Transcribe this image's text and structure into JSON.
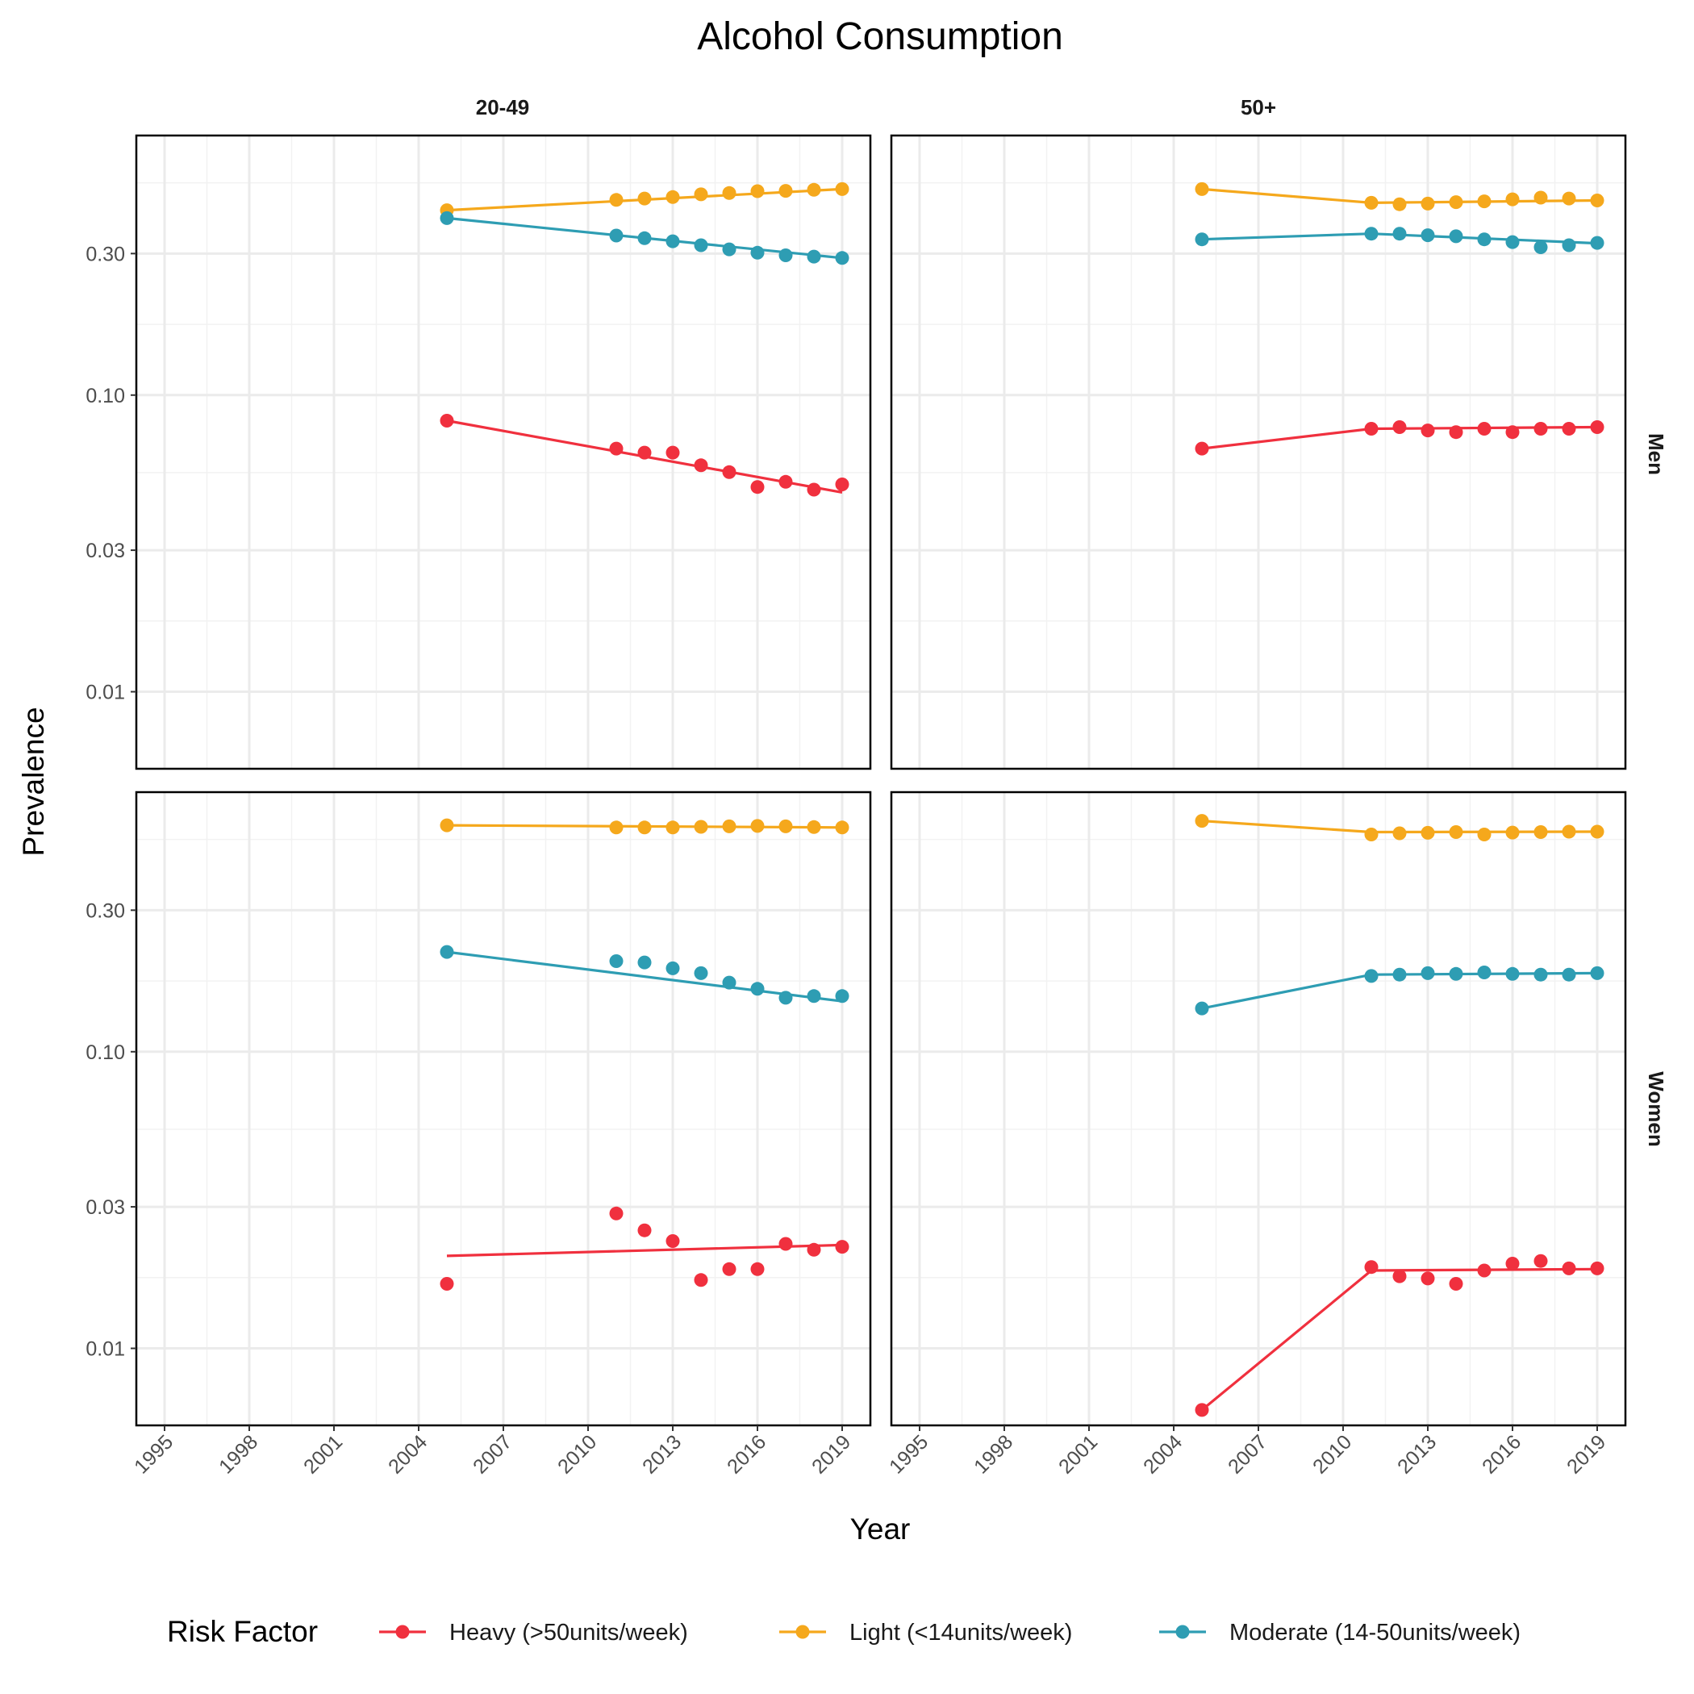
{
  "chart_data": {
    "type": "line",
    "title": "Alcohol Consumption",
    "xlabel": "Year",
    "ylabel": "Prevalence",
    "xlim": [
      1994,
      2020
    ],
    "ylim": [
      0.0055,
      0.75
    ],
    "y_scale": "log",
    "x_ticks": [
      "1995",
      "1998",
      "2001",
      "2004",
      "2007",
      "2010",
      "2013",
      "2016",
      "2019"
    ],
    "y_ticks": [
      "0.01",
      "0.03",
      "0.10",
      "0.30"
    ],
    "y_tick_values": [
      0.01,
      0.03,
      0.1,
      0.3
    ],
    "grid": true,
    "facet_columns": [
      "20-49",
      "50+"
    ],
    "facet_rows": [
      "Men",
      "Women"
    ],
    "legend": {
      "title": "Risk Factor",
      "position": "bottom",
      "entries": [
        "Heavy (>50units/week)",
        "Light (<14units/week)",
        "Moderate (14-50units/week)"
      ]
    },
    "series_colors": {
      "Heavy (>50units/week)": "#f0303e",
      "Light (<14units/week)": "#f5a81c",
      "Moderate (14-50units/week)": "#2e9db3"
    },
    "x": [
      2005,
      2011,
      2012,
      2013,
      2014,
      2015,
      2016,
      2017,
      2018,
      2019
    ],
    "panels": [
      {
        "column": "20-49",
        "row": "Men",
        "series": [
          {
            "name": "Light (<14units/week)",
            "points": [
              0.42,
              0.455,
              0.46,
              0.465,
              0.475,
              0.48,
              0.487,
              0.488,
              0.492,
              0.495
            ],
            "line": [
              0.42,
              0.495
            ]
          },
          {
            "name": "Moderate (14-50units/week)",
            "points": [
              0.395,
              0.345,
              0.338,
              0.33,
              0.32,
              0.31,
              0.302,
              0.296,
              0.293,
              0.29
            ],
            "line": [
              0.395,
              0.29
            ]
          },
          {
            "name": "Heavy (>50units/week)",
            "points": [
              0.082,
              0.066,
              0.064,
              0.064,
              0.058,
              0.055,
              0.049,
              0.051,
              0.048,
              0.05
            ],
            "line": [
              0.082,
              0.047
            ]
          }
        ]
      },
      {
        "column": "50+",
        "row": "Men",
        "series": [
          {
            "name": "Light (<14units/week)",
            "points": [
              0.495,
              0.445,
              0.44,
              0.442,
              0.447,
              0.45,
              0.457,
              0.463,
              0.46,
              0.453
            ],
            "line": [
              0.495,
              0.445,
              0.453
            ]
          },
          {
            "name": "Moderate (14-50units/week)",
            "points": [
              0.335,
              0.35,
              0.35,
              0.346,
              0.343,
              0.335,
              0.328,
              0.315,
              0.32,
              0.326
            ],
            "line": [
              0.335,
              0.35,
              0.325
            ]
          },
          {
            "name": "Heavy (>50units/week)",
            "points": [
              0.066,
              0.077,
              0.078,
              0.076,
              0.075,
              0.077,
              0.075,
              0.077,
              0.077,
              0.078
            ],
            "line": [
              0.066,
              0.077,
              0.078
            ]
          }
        ]
      },
      {
        "column": "20-49",
        "row": "Women",
        "series": [
          {
            "name": "Light (<14units/week)",
            "points": [
              0.58,
              0.57,
              0.57,
              0.57,
              0.573,
              0.575,
              0.577,
              0.575,
              0.572,
              0.57
            ],
            "line": [
              0.58,
              0.57
            ]
          },
          {
            "name": "Moderate (14-50units/week)",
            "points": [
              0.217,
              0.202,
              0.2,
              0.191,
              0.184,
              0.171,
              0.163,
              0.152,
              0.154,
              0.154
            ],
            "line": [
              0.217,
              0.148
            ]
          },
          {
            "name": "Heavy (>50units/week)",
            "points": [
              0.0165,
              0.0285,
              0.025,
              0.023,
              0.017,
              0.0185,
              0.0185,
              0.0225,
              0.0215,
              0.022
            ],
            "line": [
              0.0205,
              0.0223
            ]
          }
        ]
      },
      {
        "column": "50+",
        "row": "Women",
        "series": [
          {
            "name": "Light (<14units/week)",
            "points": [
              0.6,
              0.54,
              0.545,
              0.547,
              0.55,
              0.54,
              0.548,
              0.55,
              0.552,
              0.552
            ],
            "line": [
              0.6,
              0.55,
              0.552
            ]
          },
          {
            "name": "Moderate (14-50units/week)",
            "points": [
              0.14,
              0.18,
              0.182,
              0.184,
              0.183,
              0.185,
              0.183,
              0.182,
              0.182,
              0.184
            ],
            "line": [
              0.14,
              0.182,
              0.184
            ]
          },
          {
            "name": "Heavy (>50units/week)",
            "points": [
              0.0062,
              0.0188,
              0.0175,
              0.0172,
              0.0165,
              0.0183,
              0.0193,
              0.0197,
              0.0186,
              0.0186
            ],
            "line": [
              0.0062,
              0.0183,
              0.0185
            ]
          }
        ]
      }
    ]
  }
}
